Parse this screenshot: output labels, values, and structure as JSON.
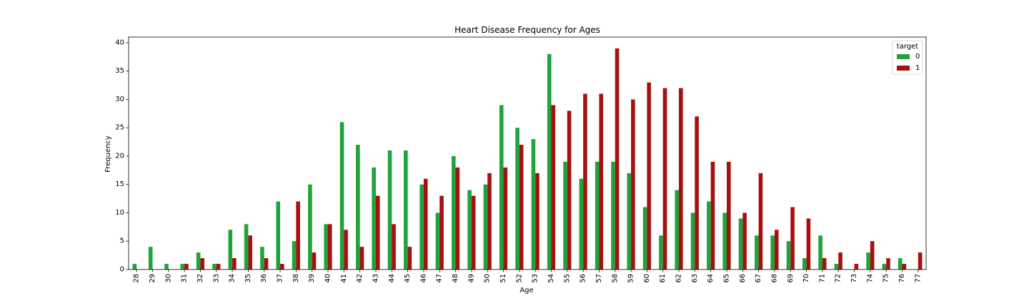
{
  "chart_data": {
    "type": "bar",
    "title": "Heart Disease Frequency for Ages",
    "xlabel": "Age",
    "ylabel": "Frequency",
    "ylim": [
      0,
      41
    ],
    "yticks": [
      0,
      5,
      10,
      15,
      20,
      25,
      30,
      35,
      40
    ],
    "grid": false,
    "legend_position": "top-right",
    "legend_title": "target",
    "categories": [
      "28",
      "29",
      "30",
      "31",
      "32",
      "33",
      "34",
      "35",
      "36",
      "37",
      "38",
      "39",
      "40",
      "41",
      "42",
      "43",
      "44",
      "45",
      "46",
      "47",
      "48",
      "49",
      "50",
      "51",
      "52",
      "53",
      "54",
      "55",
      "56",
      "57",
      "58",
      "59",
      "60",
      "61",
      "62",
      "63",
      "64",
      "65",
      "66",
      "67",
      "68",
      "69",
      "70",
      "71",
      "72",
      "73",
      "74",
      "75",
      "76",
      "77"
    ],
    "series": [
      {
        "name": "0",
        "color": "#1fa33a",
        "values": [
          1,
          4,
          1,
          1,
          3,
          1,
          7,
          8,
          4,
          12,
          5,
          15,
          8,
          26,
          22,
          18,
          21,
          21,
          15,
          10,
          20,
          14,
          15,
          29,
          25,
          23,
          38,
          19,
          16,
          19,
          19,
          17,
          11,
          6,
          14,
          10,
          12,
          10,
          9,
          6,
          6,
          5,
          2,
          6,
          1,
          0,
          3,
          1,
          2,
          0
        ]
      },
      {
        "name": "1",
        "color": "#a61010",
        "values": [
          0,
          0,
          0,
          1,
          2,
          1,
          2,
          6,
          2,
          1,
          12,
          3,
          8,
          7,
          4,
          13,
          8,
          4,
          16,
          13,
          18,
          13,
          17,
          18,
          22,
          17,
          29,
          28,
          31,
          31,
          39,
          30,
          33,
          32,
          32,
          27,
          19,
          19,
          10,
          17,
          7,
          11,
          9,
          2,
          3,
          1,
          5,
          2,
          1,
          3
        ]
      }
    ]
  }
}
